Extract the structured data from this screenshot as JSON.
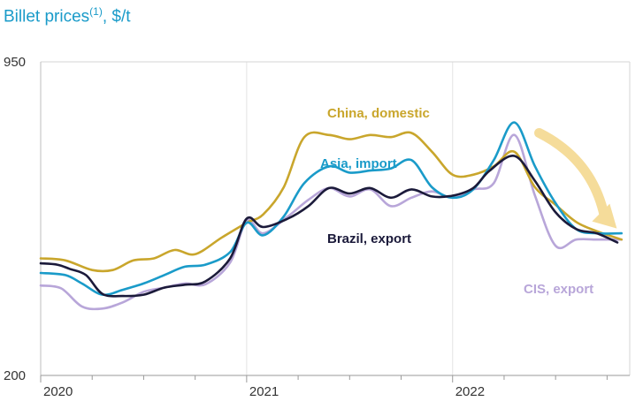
{
  "title": {
    "main": "Billet prices",
    "sup": "(1)",
    "rest": ", $/t"
  },
  "chart_data": {
    "type": "line",
    "title": "Billet prices(1), $/t",
    "xlabel": "",
    "ylabel": "",
    "ylim": [
      200,
      950
    ],
    "yticks": [
      200,
      950
    ],
    "x_ticks": [
      {
        "label": "2020",
        "year": 2020.0
      },
      {
        "label": "2021",
        "year": 2021.0
      },
      {
        "label": "2022",
        "year": 2022.0
      }
    ],
    "grid": "vertical",
    "series": [
      {
        "name": "China, domestic",
        "color": "#c9a62c",
        "x": [
          2020.0,
          2020.12,
          2020.25,
          2020.35,
          2020.45,
          2020.55,
          2020.65,
          2020.75,
          2020.88,
          2021.0,
          2021.08,
          2021.18,
          2021.28,
          2021.4,
          2021.5,
          2021.6,
          2021.7,
          2021.8,
          2021.9,
          2022.0,
          2022.1,
          2022.2,
          2022.3,
          2022.4,
          2022.5,
          2022.6,
          2022.7,
          2022.82
        ],
        "y": [
          480,
          475,
          452,
          452,
          475,
          480,
          500,
          490,
          530,
          565,
          585,
          650,
          770,
          775,
          765,
          775,
          770,
          780,
          735,
          680,
          680,
          700,
          735,
          650,
          608,
          567,
          545,
          525
        ]
      },
      {
        "name": "Asia, import",
        "color": "#1a9bc9",
        "x": [
          2020.0,
          2020.12,
          2020.2,
          2020.3,
          2020.4,
          2020.5,
          2020.6,
          2020.7,
          2020.8,
          2020.92,
          2021.0,
          2021.08,
          2021.18,
          2021.28,
          2021.4,
          2021.5,
          2021.6,
          2021.7,
          2021.8,
          2021.9,
          2022.0,
          2022.1,
          2022.2,
          2022.3,
          2022.4,
          2022.5,
          2022.6,
          2022.7,
          2022.82
        ],
        "y": [
          445,
          440,
          420,
          393,
          405,
          420,
          440,
          460,
          465,
          495,
          565,
          535,
          580,
          660,
          700,
          685,
          690,
          695,
          715,
          650,
          625,
          645,
          715,
          805,
          700,
          612,
          550,
          540,
          540
        ]
      },
      {
        "name": "Brazil, export",
        "color": "#1b1a3a",
        "x": [
          2020.0,
          2020.08,
          2020.14,
          2020.22,
          2020.3,
          2020.4,
          2020.5,
          2020.6,
          2020.7,
          2020.8,
          2020.92,
          2021.0,
          2021.08,
          2021.2,
          2021.3,
          2021.4,
          2021.5,
          2021.6,
          2021.7,
          2021.8,
          2021.9,
          2022.0,
          2022.1,
          2022.18,
          2022.3,
          2022.4,
          2022.5,
          2022.6,
          2022.7,
          2022.8
        ],
        "y": [
          468,
          465,
          455,
          440,
          395,
          390,
          393,
          410,
          417,
          425,
          480,
          575,
          555,
          575,
          605,
          648,
          635,
          648,
          625,
          645,
          628,
          630,
          648,
          690,
          725,
          665,
          590,
          550,
          540,
          518
        ]
      },
      {
        "name": "CIS, export",
        "color": "#b8a6d9",
        "x": [
          2020.0,
          2020.1,
          2020.2,
          2020.3,
          2020.4,
          2020.5,
          2020.6,
          2020.7,
          2020.8,
          2020.92,
          2021.0,
          2021.08,
          2021.2,
          2021.3,
          2021.4,
          2021.5,
          2021.6,
          2021.7,
          2021.8,
          2021.9,
          2022.0,
          2022.1,
          2022.2,
          2022.3,
          2022.4,
          2022.5,
          2022.6,
          2022.7,
          2022.82
        ],
        "y": [
          415,
          408,
          365,
          360,
          375,
          400,
          410,
          420,
          418,
          470,
          570,
          540,
          580,
          620,
          648,
          628,
          645,
          605,
          625,
          640,
          625,
          645,
          660,
          775,
          630,
          510,
          525,
          525,
          525
        ]
      }
    ],
    "annotations": [
      {
        "text": "China, domestic",
        "series": 0
      },
      {
        "text": "Asia, import",
        "series": 1
      },
      {
        "text": "Brazil, export",
        "series": 2
      },
      {
        "text": "CIS, export",
        "series": 3
      }
    ],
    "trend_arrow": {
      "color": "#f5dc9a",
      "from": [
        2022.42,
        780
      ],
      "to": [
        2022.78,
        560
      ]
    }
  }
}
